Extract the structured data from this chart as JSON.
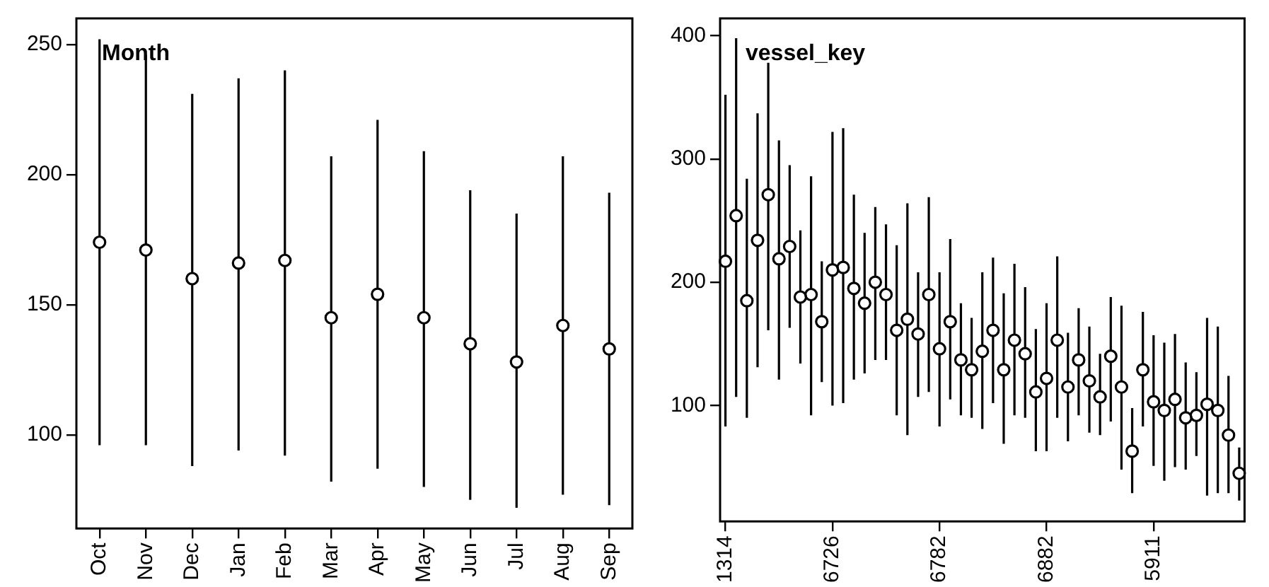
{
  "chart_data": [
    {
      "type": "scatter",
      "title": "Month",
      "color": "#000000",
      "marker": "circle",
      "grid": false,
      "categories": [
        "Oct",
        "Nov",
        "Dec",
        "Jan",
        "Feb",
        "Mar",
        "Apr",
        "May",
        "Jun",
        "Jul",
        "Aug",
        "Sep"
      ],
      "values": [
        174,
        171,
        160,
        166,
        167,
        145,
        154,
        145,
        135,
        128,
        142,
        133
      ],
      "errors": [
        [
          96,
          252
        ],
        [
          96,
          246
        ],
        [
          88,
          231
        ],
        [
          94,
          237
        ],
        [
          92,
          240
        ],
        [
          82,
          207
        ],
        [
          87,
          221
        ],
        [
          80,
          209
        ],
        [
          75,
          194
        ],
        [
          72,
          185
        ],
        [
          77,
          207
        ],
        [
          73,
          193
        ]
      ],
      "ylim": [
        64,
        260
      ],
      "yticks": [
        100,
        150,
        200,
        250
      ]
    },
    {
      "type": "scatter",
      "title": "vessel_key",
      "color": "#000000",
      "marker": "circle",
      "grid": false,
      "categories": [
        "1314",
        null,
        null,
        null,
        null,
        null,
        null,
        null,
        null,
        null,
        "6726",
        null,
        null,
        null,
        null,
        null,
        null,
        null,
        null,
        null,
        "6782",
        null,
        null,
        null,
        null,
        null,
        null,
        null,
        null,
        null,
        "6882",
        null,
        null,
        null,
        null,
        null,
        null,
        null,
        null,
        null,
        "5911",
        null,
        null,
        null,
        null,
        null,
        null,
        null,
        null
      ],
      "values": [
        217,
        254,
        185,
        234,
        271,
        219,
        229,
        188,
        190,
        168,
        210,
        212,
        195,
        183,
        200,
        190,
        161,
        170,
        158,
        190,
        146,
        168,
        137,
        129,
        144,
        161,
        129,
        153,
        142,
        111,
        122,
        153,
        115,
        137,
        120,
        107,
        140,
        115,
        63,
        129,
        103,
        96,
        105,
        90,
        92,
        101,
        96,
        76,
        45
      ],
      "errors": [
        [
          83,
          352
        ],
        [
          107,
          398
        ],
        [
          90,
          284
        ],
        [
          131,
          337
        ],
        [
          161,
          378
        ],
        [
          121,
          315
        ],
        [
          163,
          295
        ],
        [
          134,
          242
        ],
        [
          92,
          286
        ],
        [
          119,
          217
        ],
        [
          100,
          322
        ],
        [
          102,
          325
        ],
        [
          121,
          271
        ],
        [
          126,
          240
        ],
        [
          137,
          261
        ],
        [
          137,
          247
        ],
        [
          92,
          230
        ],
        [
          76,
          264
        ],
        [
          107,
          208
        ],
        [
          111,
          269
        ],
        [
          83,
          208
        ],
        [
          105,
          235
        ],
        [
          92,
          183
        ],
        [
          90,
          171
        ],
        [
          81,
          208
        ],
        [
          102,
          220
        ],
        [
          69,
          191
        ],
        [
          92,
          215
        ],
        [
          90,
          196
        ],
        [
          63,
          162
        ],
        [
          63,
          183
        ],
        [
          90,
          221
        ],
        [
          71,
          159
        ],
        [
          92,
          179
        ],
        [
          78,
          164
        ],
        [
          76,
          142
        ],
        [
          87,
          188
        ],
        [
          48,
          181
        ],
        [
          29,
          98
        ],
        [
          83,
          176
        ],
        [
          51,
          157
        ],
        [
          39,
          151
        ],
        [
          50,
          158
        ],
        [
          48,
          135
        ],
        [
          59,
          127
        ],
        [
          27,
          171
        ],
        [
          29,
          164
        ],
        [
          29,
          124
        ],
        [
          23,
          66
        ]
      ],
      "ylim": [
        6,
        414
      ],
      "yticks": [
        100,
        200,
        300,
        400
      ]
    }
  ]
}
